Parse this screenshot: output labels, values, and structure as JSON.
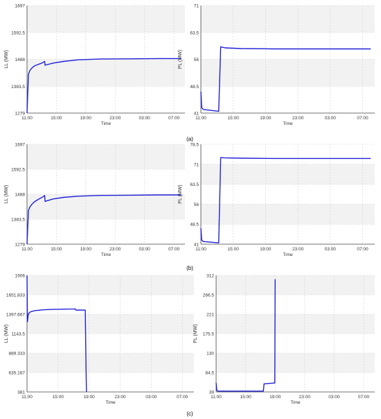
{
  "panel_labels": [
    "(a)",
    "(b)",
    "(c)"
  ],
  "chart_data": [
    {
      "type": "line",
      "panel": "(a)",
      "xlabel": "Time",
      "ylabel": "LL (MW)",
      "ylim": [
        1279,
        1697
      ],
      "yticks": [
        "1697",
        "1592.5",
        "1488",
        "1383.5",
        "1279"
      ],
      "xticks": [
        "11:00",
        "15:00",
        "19:00",
        "23:00",
        "03:00",
        "07:00"
      ],
      "grid": true,
      "series": [
        {
          "x": [
            11.0,
            11.2,
            11.4,
            11.7,
            12.0,
            12.5,
            13.0,
            13.3,
            13.4,
            13.45,
            14.5,
            16.0,
            18.0,
            21.0,
            25.0,
            29.0,
            32.0
          ],
          "values": [
            1279,
            1430,
            1445,
            1455,
            1462,
            1468,
            1473,
            1478,
            1480,
            1465,
            1473,
            1480,
            1486,
            1489,
            1490,
            1491,
            1491
          ]
        }
      ]
    },
    {
      "type": "line",
      "panel": "(a)",
      "xlabel": "Time",
      "ylabel": "PL (MW)",
      "ylim": [
        41,
        71
      ],
      "yticks": [
        "71",
        "63.5",
        "56",
        "48.5",
        "41"
      ],
      "xticks": [
        "11:00",
        "15:00",
        "19:00",
        "23:00",
        "03:00",
        "07:00"
      ],
      "grid": true,
      "series": [
        {
          "x": [
            11.0,
            11.1,
            11.3,
            13.2,
            13.45,
            14.0,
            16.0,
            20.0,
            25.0,
            32.0
          ],
          "values": [
            47,
            42.5,
            42,
            41.5,
            59.5,
            59.2,
            59.0,
            58.9,
            58.9,
            58.9
          ]
        }
      ]
    },
    {
      "type": "line",
      "panel": "(b)",
      "xlabel": "Time",
      "ylabel": "LL (MW)",
      "ylim": [
        1279,
        1697
      ],
      "yticks": [
        "1697",
        "1592.5",
        "1488",
        "1383.5",
        "1279"
      ],
      "xticks": [
        "11:00",
        "15:00",
        "19:00",
        "23:00",
        "03:00",
        "07:00"
      ],
      "grid": true,
      "series": [
        {
          "x": [
            11.0,
            11.2,
            11.4,
            11.7,
            12.0,
            12.5,
            13.0,
            13.3,
            13.4,
            13.45,
            14.5,
            16.0,
            18.0,
            21.0,
            25.0,
            29.0,
            32.0
          ],
          "values": [
            1279,
            1420,
            1435,
            1447,
            1456,
            1466,
            1474,
            1480,
            1483,
            1458,
            1468,
            1475,
            1480,
            1483,
            1484,
            1485,
            1485
          ]
        }
      ]
    },
    {
      "type": "line",
      "panel": "(b)",
      "xlabel": "Time",
      "ylabel": "PL (MW)",
      "ylim": [
        41,
        78.5
      ],
      "yticks": [
        "78.5",
        "71",
        "63.5",
        "56",
        "48.5",
        "41"
      ],
      "xticks": [
        "11:00",
        "15:00",
        "19:00",
        "23:00",
        "03:00",
        "07:00"
      ],
      "grid": true,
      "series": [
        {
          "x": [
            11.0,
            11.1,
            11.3,
            13.2,
            13.45,
            14.0,
            16.0,
            20.0,
            25.0,
            32.0
          ],
          "values": [
            47,
            42.5,
            42,
            41.5,
            73.5,
            73.4,
            73.3,
            73.2,
            73.2,
            73.2
          ]
        }
      ]
    },
    {
      "type": "line",
      "panel": "(c)",
      "xlabel": "Time",
      "ylabel": "LL (MW)",
      "ylim": [
        381,
        1906
      ],
      "yticks": [
        "1906",
        "1651.833",
        "1397.667",
        "1143.5",
        "889.333",
        "635.167",
        "381"
      ],
      "xticks": [
        "11:00",
        "15:00",
        "19:00",
        "23:00",
        "03:00",
        "07:00"
      ],
      "grid": true,
      "series": [
        {
          "x": [
            11.0,
            11.05,
            11.15,
            11.3,
            11.6,
            12.0,
            13.0,
            14.0,
            15.0,
            16.0,
            17.0,
            17.2,
            17.3,
            18.0,
            18.5,
            18.6,
            18.65
          ],
          "values": [
            1906,
            1300,
            1390,
            1420,
            1435,
            1445,
            1455,
            1460,
            1463,
            1465,
            1467,
            1468,
            1452,
            1452,
            1451,
            700,
            381
          ]
        }
      ]
    },
    {
      "type": "line",
      "panel": "(c)",
      "xlabel": "Time",
      "ylabel": "PL (MW)",
      "ylim": [
        39,
        312
      ],
      "yticks": [
        "312",
        "266.5",
        "221",
        "175.5",
        "130",
        "84.5",
        "39"
      ],
      "xticks": [
        "11:00",
        "15:00",
        "19:00",
        "23:00",
        "03:00",
        "07:00"
      ],
      "grid": true,
      "series": [
        {
          "x": [
            11.0,
            11.1,
            11.3,
            17.3,
            17.4,
            17.5,
            18.95,
            19.0
          ],
          "values": [
            60,
            42,
            41,
            41,
            41,
            58,
            60,
            303
          ]
        }
      ]
    }
  ]
}
